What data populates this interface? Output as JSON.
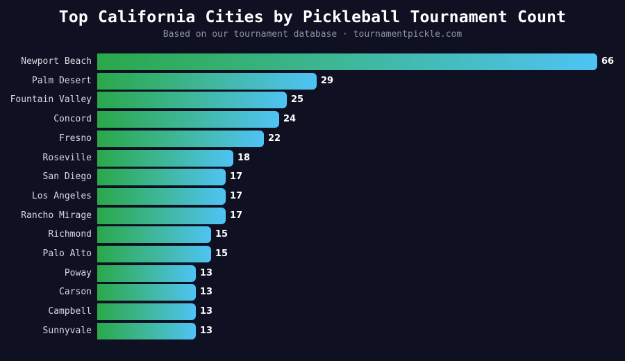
{
  "header": {
    "title": "Top California Cities by Pickleball Tournament Count",
    "subtitle": "Based on our tournament database · tournamentpickle.com"
  },
  "colors": {
    "background": "#0f1022",
    "bar_gradient_start": "#2aa84a",
    "bar_gradient_end": "#4fc3f4",
    "label_text": "#d6d8e0",
    "value_text": "#ffffff",
    "subtitle_text": "#8c92a8"
  },
  "chart_data": {
    "type": "bar",
    "orientation": "horizontal",
    "title": "Top California Cities by Pickleball Tournament Count",
    "subtitle": "Based on our tournament database · tournamentpickle.com",
    "categories": [
      "Newport Beach",
      "Palm Desert",
      "Fountain Valley",
      "Concord",
      "Fresno",
      "Roseville",
      "San Diego",
      "Los Angeles",
      "Rancho Mirage",
      "Richmond",
      "Palo Alto",
      "Poway",
      "Carson",
      "Campbell",
      "Sunnyvale"
    ],
    "values": [
      66,
      29,
      25,
      24,
      22,
      18,
      17,
      17,
      17,
      15,
      15,
      13,
      13,
      13,
      13
    ],
    "xlabel": "",
    "ylabel": "",
    "xlim": [
      0,
      66
    ],
    "grid": false,
    "legend": null,
    "data_labels": true
  }
}
